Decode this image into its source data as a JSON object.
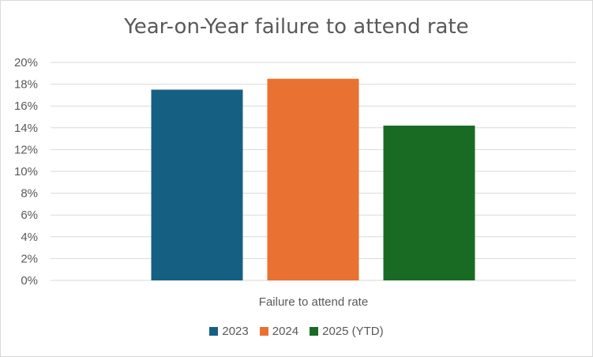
{
  "chart_data": {
    "type": "bar",
    "title": "Year-on-Year failure to attend rate",
    "categories": [
      "Failure to attend rate"
    ],
    "series": [
      {
        "name": "2023",
        "values": [
          17.5
        ],
        "color": "#156082"
      },
      {
        "name": "2024",
        "values": [
          18.5
        ],
        "color": "#e97132"
      },
      {
        "name": "2025 (YTD)",
        "values": [
          14.2
        ],
        "color": "#196b24"
      }
    ],
    "ylim": [
      0,
      20
    ],
    "yticks": [
      "0%",
      "2%",
      "4%",
      "6%",
      "8%",
      "10%",
      "12%",
      "14%",
      "16%",
      "18%",
      "20%"
    ],
    "grid": true,
    "legend_position": "bottom",
    "gridline_color": "#d9d9d9"
  }
}
